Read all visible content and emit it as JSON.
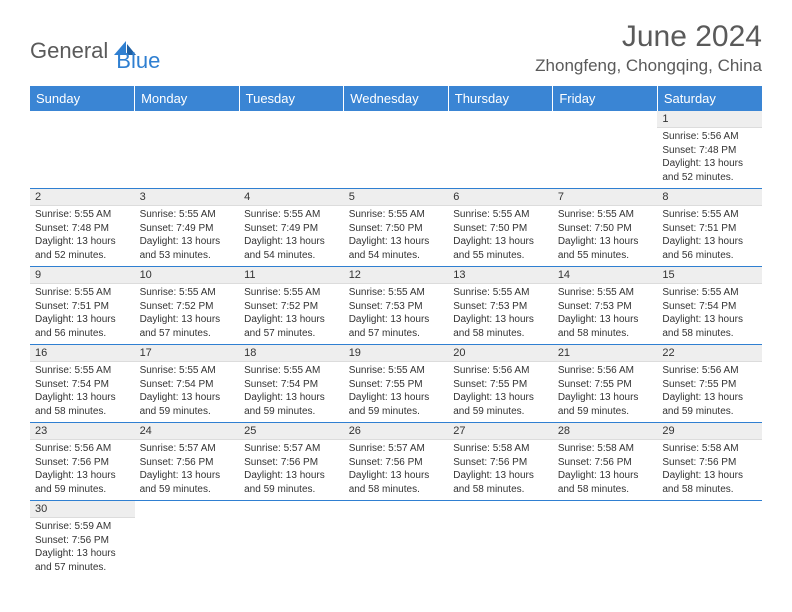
{
  "logo": {
    "text1": "General",
    "text2": "Blue"
  },
  "title": "June 2024",
  "location": "Zhongfeng, Chongqing, China",
  "colors": {
    "header_bg": "#3a85d4",
    "header_text": "#ffffff",
    "daynum_bg": "#eeeeee",
    "border": "#2f7fd1",
    "text": "#333333",
    "logo_gray": "#5a5a5a",
    "logo_blue": "#2f7fd1"
  },
  "weekdays": [
    "Sunday",
    "Monday",
    "Tuesday",
    "Wednesday",
    "Thursday",
    "Friday",
    "Saturday"
  ],
  "weeks": [
    [
      null,
      null,
      null,
      null,
      null,
      null,
      {
        "d": "1",
        "sr": "5:56 AM",
        "ss": "7:48 PM",
        "dl": "13 hours and 52 minutes."
      }
    ],
    [
      {
        "d": "2",
        "sr": "5:55 AM",
        "ss": "7:48 PM",
        "dl": "13 hours and 52 minutes."
      },
      {
        "d": "3",
        "sr": "5:55 AM",
        "ss": "7:49 PM",
        "dl": "13 hours and 53 minutes."
      },
      {
        "d": "4",
        "sr": "5:55 AM",
        "ss": "7:49 PM",
        "dl": "13 hours and 54 minutes."
      },
      {
        "d": "5",
        "sr": "5:55 AM",
        "ss": "7:50 PM",
        "dl": "13 hours and 54 minutes."
      },
      {
        "d": "6",
        "sr": "5:55 AM",
        "ss": "7:50 PM",
        "dl": "13 hours and 55 minutes."
      },
      {
        "d": "7",
        "sr": "5:55 AM",
        "ss": "7:50 PM",
        "dl": "13 hours and 55 minutes."
      },
      {
        "d": "8",
        "sr": "5:55 AM",
        "ss": "7:51 PM",
        "dl": "13 hours and 56 minutes."
      }
    ],
    [
      {
        "d": "9",
        "sr": "5:55 AM",
        "ss": "7:51 PM",
        "dl": "13 hours and 56 minutes."
      },
      {
        "d": "10",
        "sr": "5:55 AM",
        "ss": "7:52 PM",
        "dl": "13 hours and 57 minutes."
      },
      {
        "d": "11",
        "sr": "5:55 AM",
        "ss": "7:52 PM",
        "dl": "13 hours and 57 minutes."
      },
      {
        "d": "12",
        "sr": "5:55 AM",
        "ss": "7:53 PM",
        "dl": "13 hours and 57 minutes."
      },
      {
        "d": "13",
        "sr": "5:55 AM",
        "ss": "7:53 PM",
        "dl": "13 hours and 58 minutes."
      },
      {
        "d": "14",
        "sr": "5:55 AM",
        "ss": "7:53 PM",
        "dl": "13 hours and 58 minutes."
      },
      {
        "d": "15",
        "sr": "5:55 AM",
        "ss": "7:54 PM",
        "dl": "13 hours and 58 minutes."
      }
    ],
    [
      {
        "d": "16",
        "sr": "5:55 AM",
        "ss": "7:54 PM",
        "dl": "13 hours and 58 minutes."
      },
      {
        "d": "17",
        "sr": "5:55 AM",
        "ss": "7:54 PM",
        "dl": "13 hours and 59 minutes."
      },
      {
        "d": "18",
        "sr": "5:55 AM",
        "ss": "7:54 PM",
        "dl": "13 hours and 59 minutes."
      },
      {
        "d": "19",
        "sr": "5:55 AM",
        "ss": "7:55 PM",
        "dl": "13 hours and 59 minutes."
      },
      {
        "d": "20",
        "sr": "5:56 AM",
        "ss": "7:55 PM",
        "dl": "13 hours and 59 minutes."
      },
      {
        "d": "21",
        "sr": "5:56 AM",
        "ss": "7:55 PM",
        "dl": "13 hours and 59 minutes."
      },
      {
        "d": "22",
        "sr": "5:56 AM",
        "ss": "7:55 PM",
        "dl": "13 hours and 59 minutes."
      }
    ],
    [
      {
        "d": "23",
        "sr": "5:56 AM",
        "ss": "7:56 PM",
        "dl": "13 hours and 59 minutes."
      },
      {
        "d": "24",
        "sr": "5:57 AM",
        "ss": "7:56 PM",
        "dl": "13 hours and 59 minutes."
      },
      {
        "d": "25",
        "sr": "5:57 AM",
        "ss": "7:56 PM",
        "dl": "13 hours and 59 minutes."
      },
      {
        "d": "26",
        "sr": "5:57 AM",
        "ss": "7:56 PM",
        "dl": "13 hours and 58 minutes."
      },
      {
        "d": "27",
        "sr": "5:58 AM",
        "ss": "7:56 PM",
        "dl": "13 hours and 58 minutes."
      },
      {
        "d": "28",
        "sr": "5:58 AM",
        "ss": "7:56 PM",
        "dl": "13 hours and 58 minutes."
      },
      {
        "d": "29",
        "sr": "5:58 AM",
        "ss": "7:56 PM",
        "dl": "13 hours and 58 minutes."
      }
    ],
    [
      {
        "d": "30",
        "sr": "5:59 AM",
        "ss": "7:56 PM",
        "dl": "13 hours and 57 minutes."
      },
      null,
      null,
      null,
      null,
      null,
      null
    ]
  ],
  "labels": {
    "sunrise": "Sunrise: ",
    "sunset": "Sunset: ",
    "daylight": "Daylight: "
  }
}
